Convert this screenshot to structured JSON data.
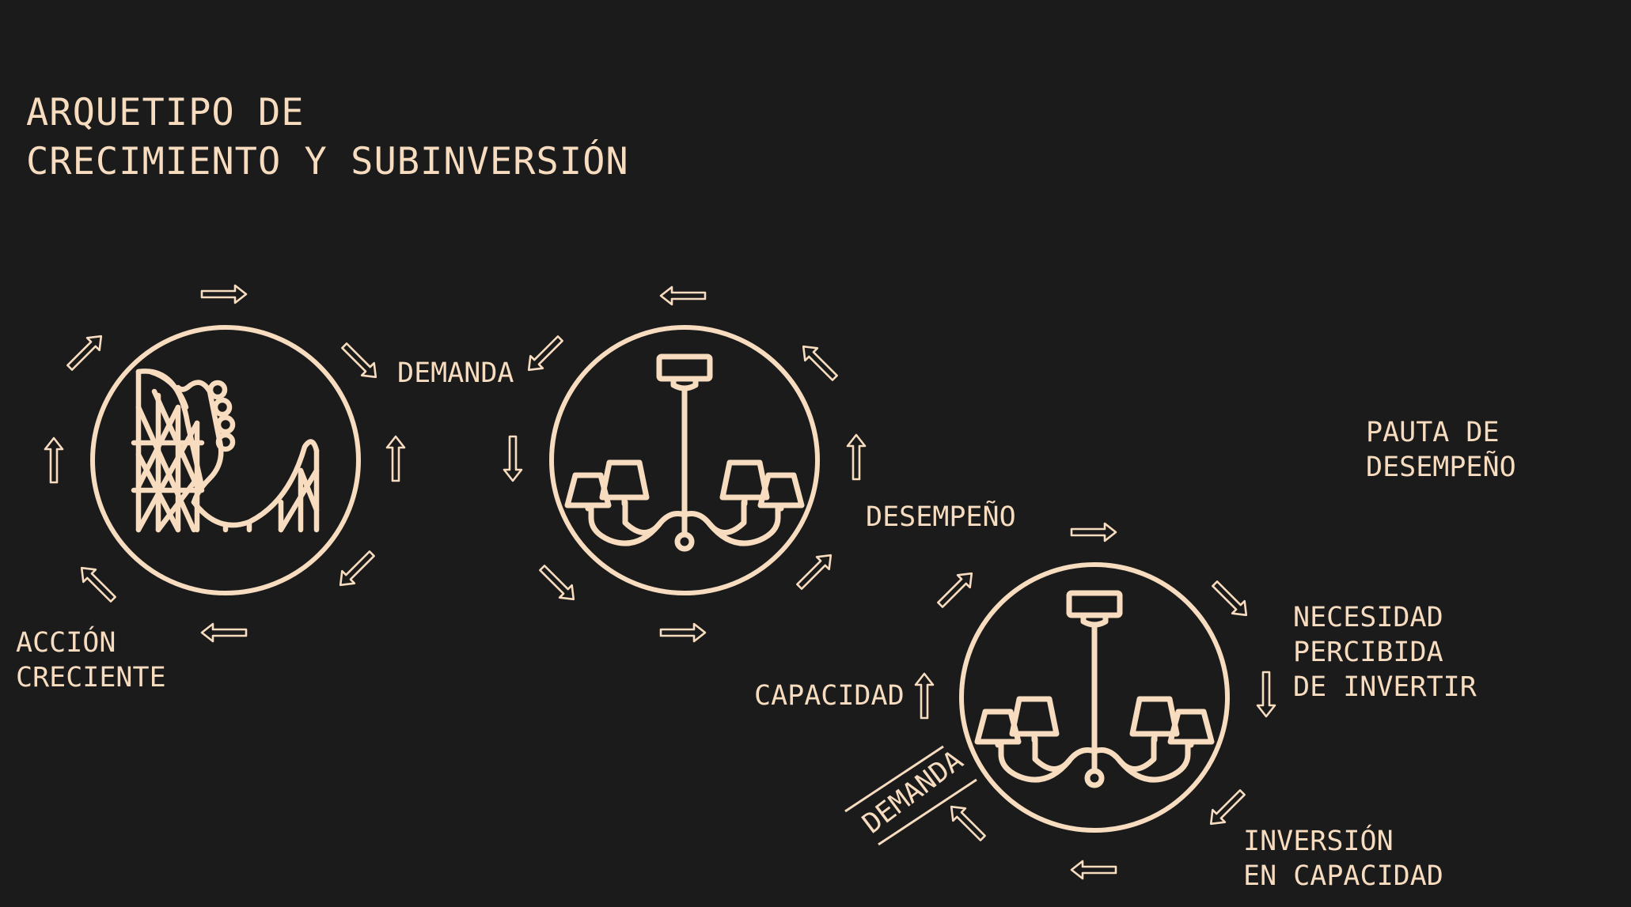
{
  "title": "ARQUETIPO DE\nCRECIMIENTO Y SUBINVERSIÓN",
  "labels": {
    "demanda_top": "DEMANDA",
    "accion_creciente": "ACCIÓN\nCRECIENTE",
    "desempeno": "DESEMPEÑO",
    "pauta_desempeno": "PAUTA DE\nDESEMPEÑO",
    "capacidad": "CAPACIDAD",
    "necesidad": "NECESIDAD\nPERCIBIDA\nDE INVERTIR",
    "inversion": "INVERSIÓN\nEN CAPACIDAD",
    "demanda_diag": "DEMANDA"
  },
  "icons": [
    "roller-coaster-icon",
    "chandelier-icon",
    "chandelier-icon"
  ],
  "colors": {
    "background": "#1b1b1b",
    "foreground": "#f7dcbf"
  }
}
